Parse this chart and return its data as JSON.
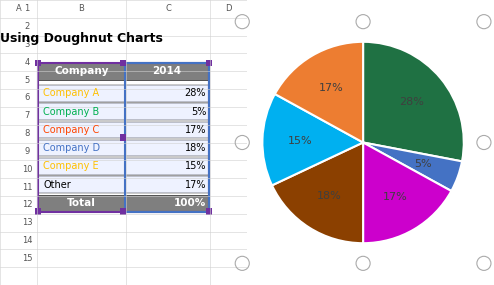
{
  "title": "Using Doughnut Charts",
  "companies": [
    "Company A",
    "Company B",
    "Company C",
    "Company D",
    "Company E",
    "Other"
  ],
  "comp_text_colors": [
    "#FFC000",
    "#00B050",
    "#FF4500",
    "#4472C4",
    "#FFC000",
    "#000000"
  ],
  "values": [
    28,
    5,
    17,
    18,
    15,
    17
  ],
  "labels": [
    "28%",
    "5%",
    "17%",
    "18%",
    "15%",
    "17%"
  ],
  "pie_colors": [
    "#1F7143",
    "#4472C4",
    "#CC00CC",
    "#8B4000",
    "#00B0F0",
    "#ED7D31"
  ],
  "bg_color": "#FFFFFF",
  "table_header_bg": "#7F7F7F",
  "table_body_bg": "#EEF2FF",
  "total_bg": "#7F7F7F",
  "grid_color": "#D0D0D0",
  "border_purple": "#7030A0",
  "border_blue": "#4472C4"
}
